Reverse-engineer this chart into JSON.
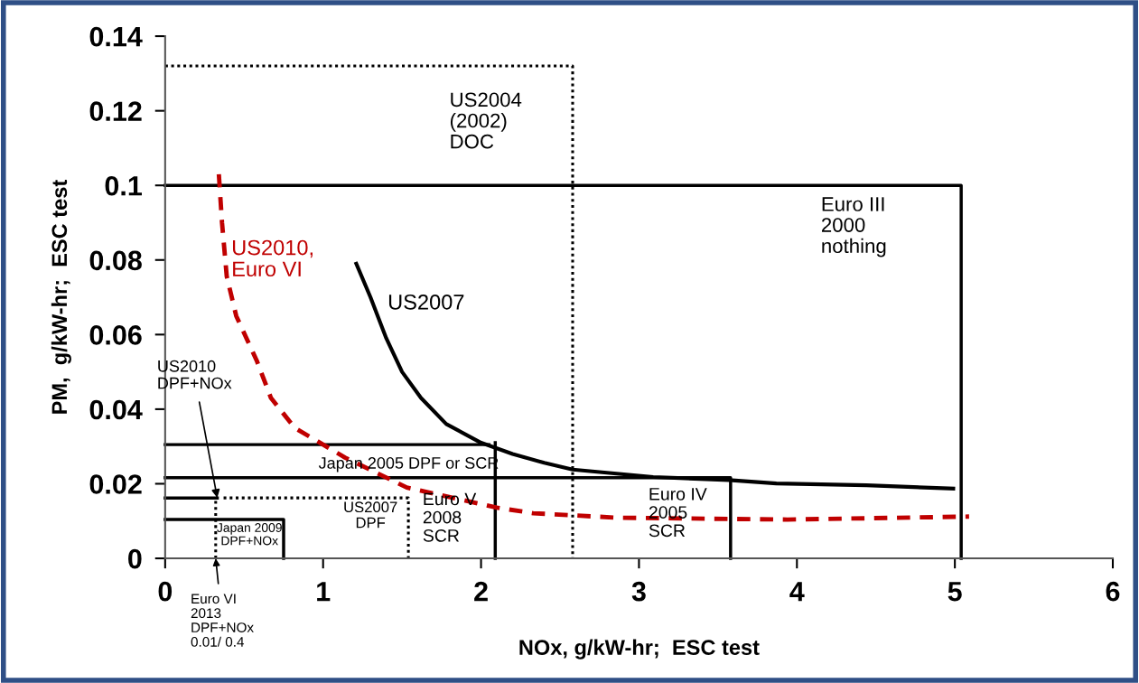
{
  "chart_data": {
    "type": "line",
    "xlabel": "NOx, g/kW-hr;  ESC test",
    "ylabel": "PM,  g/kW-hr;  ESC test",
    "xlim": [
      0,
      6
    ],
    "xticks": [
      0,
      1,
      2,
      3,
      4,
      5,
      6
    ],
    "ylim": [
      0,
      0.14
    ],
    "yticks": [
      0,
      0.02,
      0.04,
      0.06,
      0.08,
      0.1,
      0.12,
      0.14
    ],
    "grid": false,
    "legend": false,
    "marker": "none",
    "series": [
      {
        "color": "#000000",
        "line_style": "solid",
        "x": [
          0,
          5.04,
          5.04
        ],
        "values": [
          0.1,
          0.1,
          0
        ]
      },
      {
        "color": "#000000",
        "line_style": "dotted",
        "x": [
          0,
          2.58,
          2.58
        ],
        "values": [
          0.132,
          0.132,
          0
        ]
      },
      {
        "color": "#000000",
        "line_style": "solid",
        "x": [
          0,
          2.05
        ],
        "values": [
          0.0305,
          0.0305
        ]
      },
      {
        "color": "#000000",
        "line_style": "solid",
        "x": [
          2.09,
          2.09
        ],
        "values": [
          0,
          0.031
        ]
      },
      {
        "color": "#000000",
        "line_style": "solid",
        "x": [
          0,
          3.58,
          3.58
        ],
        "values": [
          0.0216,
          0.0216,
          0
        ]
      },
      {
        "color": "#000000",
        "line_style": "solid",
        "x": [
          0,
          0.33
        ],
        "values": [
          0.0162,
          0.0162
        ]
      },
      {
        "color": "#000000",
        "line_style": "dotted",
        "x": [
          0.37,
          1.54,
          1.54
        ],
        "values": [
          0.0162,
          0.0162,
          0
        ]
      },
      {
        "color": "#000000",
        "line_style": "solid",
        "x": [
          0,
          0.75,
          0.75
        ],
        "values": [
          0.0104,
          0.0104,
          0
        ]
      },
      {
        "color": "#000000",
        "line_style": "dotted",
        "x": [
          0.32,
          0.32
        ],
        "values": [
          0,
          0.0162
        ]
      },
      {
        "name": "US2007",
        "color": "#000000",
        "line_style": "solid",
        "x": [
          1.21,
          1.3,
          1.4,
          1.5,
          1.62,
          1.78,
          2.0,
          2.2,
          2.4,
          2.58,
          3.09,
          3.57,
          3.87,
          4.44,
          4.99
        ],
        "values": [
          0.079,
          0.07,
          0.059,
          0.05,
          0.043,
          0.036,
          0.031,
          0.028,
          0.0256,
          0.0238,
          0.0218,
          0.021,
          0.0201,
          0.0196,
          0.0187
        ]
      },
      {
        "name": "US2010,\nEuro VI",
        "color": "#c00000",
        "line_style": "dashed",
        "x": [
          0.34,
          0.36,
          0.39,
          0.45,
          0.58,
          0.67,
          0.82,
          1.14,
          1.53,
          2.1,
          2.33,
          2.86,
          3.94,
          5.09
        ],
        "values": [
          0.103,
          0.09,
          0.0756,
          0.065,
          0.053,
          0.043,
          0.035,
          0.027,
          0.019,
          0.0136,
          0.0121,
          0.0109,
          0.0104,
          0.0112
        ]
      }
    ],
    "annotations": [
      "US2004\n(2002)\nDOC",
      "Euro III\n2000\nnothing",
      {
        "text": "US2010\nDPF+NOx",
        "x": 0.33,
        "y": 0.0162
      },
      "Japan 2005 DPF or SCR",
      {
        "text": "Euro V\n2008\nSCR",
        "x": 1.63,
        "y": 0.0177
      },
      {
        "text": "US2007\nDPF",
        "x": 1.3,
        "y": 0.0153
      },
      "Japan 2009\nDPF+NOx",
      "Euro IV\n2005\nSCR",
      {
        "text": "Euro VI\n2013\nDPF+NOx\n0.01/ 0.4",
        "x": 0.32,
        "y": 0
      }
    ]
  }
}
